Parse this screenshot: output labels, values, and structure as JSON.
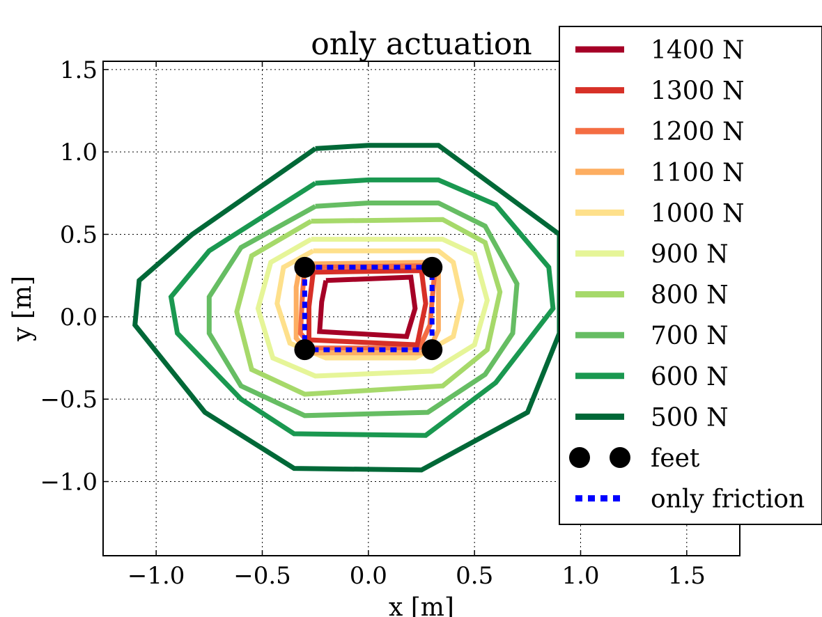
{
  "chart_data": {
    "type": "line",
    "title": "only actuation",
    "xlabel": "x [m]",
    "ylabel": "y [m]",
    "xlim": [
      -1.25,
      1.75
    ],
    "ylim": [
      -1.45,
      1.55
    ],
    "xticks": [
      -1.0,
      -0.5,
      0.0,
      0.5,
      1.0,
      1.5
    ],
    "yticks": [
      -1.0,
      -0.5,
      0.0,
      0.5,
      1.0,
      1.5
    ],
    "xtick_labels": [
      "−1.0",
      "−0.5",
      "0.0",
      "0.5",
      "1.0",
      "1.5"
    ],
    "ytick_labels": [
      "−1.0",
      "−0.5",
      "0.0",
      "0.5",
      "1.0",
      "1.5"
    ],
    "grid": true,
    "legend_position": "top-right",
    "series": [
      {
        "name": "1400 N",
        "color": "#a50026",
        "x": [
          -0.2,
          0.2,
          0.22,
          0.18,
          -0.23,
          -0.22,
          -0.2
        ],
        "y": [
          0.22,
          0.24,
          0.05,
          -0.12,
          -0.09,
          0.09,
          0.22
        ]
      },
      {
        "name": "1300 N",
        "color": "#d73027",
        "x": [
          -0.26,
          0.25,
          0.27,
          0.23,
          -0.28,
          -0.28,
          -0.26
        ],
        "y": [
          0.27,
          0.28,
          0.08,
          -0.17,
          -0.14,
          0.06,
          0.27
        ]
      },
      {
        "name": "1200 N",
        "color": "#f46d43",
        "x": [
          -0.3,
          0.28,
          0.31,
          0.29,
          0.24,
          -0.26,
          -0.32,
          -0.31,
          -0.3
        ],
        "y": [
          0.3,
          0.31,
          0.24,
          -0.05,
          -0.19,
          -0.19,
          -0.1,
          0.15,
          0.3
        ]
      },
      {
        "name": "1100 N",
        "color": "#fdae61",
        "x": [
          -0.32,
          0.3,
          0.33,
          0.33,
          0.28,
          -0.28,
          -0.34,
          -0.34,
          -0.32
        ],
        "y": [
          0.32,
          0.33,
          0.27,
          -0.08,
          -0.22,
          -0.22,
          -0.13,
          0.18,
          0.32
        ]
      },
      {
        "name": "1000 N",
        "color": "#fee08b",
        "x": [
          -0.26,
          0.33,
          0.4,
          0.44,
          0.4,
          0.22,
          -0.2,
          -0.37,
          -0.43,
          -0.4,
          -0.26
        ],
        "y": [
          0.4,
          0.4,
          0.33,
          0.1,
          -0.12,
          -0.25,
          -0.25,
          -0.16,
          0.08,
          0.3,
          0.4
        ]
      },
      {
        "name": "900 N",
        "color": "#e6f598",
        "x": [
          -0.27,
          0.35,
          0.5,
          0.56,
          0.5,
          0.3,
          -0.25,
          -0.45,
          -0.52,
          -0.46,
          -0.27
        ],
        "y": [
          0.47,
          0.47,
          0.38,
          0.1,
          -0.17,
          -0.33,
          -0.36,
          -0.25,
          0.05,
          0.33,
          0.47
        ]
      },
      {
        "name": "800 N",
        "color": "#a6d96a",
        "x": [
          -0.27,
          0.35,
          0.55,
          0.62,
          0.56,
          0.35,
          -0.3,
          -0.55,
          -0.62,
          -0.55,
          -0.27
        ],
        "y": [
          0.58,
          0.59,
          0.45,
          0.15,
          -0.2,
          -0.42,
          -0.47,
          -0.32,
          0.03,
          0.37,
          0.58
        ]
      },
      {
        "name": "700 N",
        "color": "#66bd63",
        "x": [
          -0.25,
          0.0,
          0.33,
          0.55,
          0.7,
          0.68,
          0.55,
          0.28,
          -0.3,
          -0.6,
          -0.75,
          -0.75,
          -0.6,
          -0.25
        ],
        "y": [
          0.67,
          0.69,
          0.69,
          0.55,
          0.2,
          -0.1,
          -0.35,
          -0.58,
          -0.6,
          -0.42,
          -0.1,
          0.12,
          0.42,
          0.67
        ]
      },
      {
        "name": "600 N",
        "color": "#1a9850",
        "x": [
          -0.25,
          0.0,
          0.33,
          0.6,
          0.85,
          0.87,
          0.6,
          0.27,
          -0.35,
          -0.6,
          -0.9,
          -0.93,
          -0.75,
          -0.25
        ],
        "y": [
          0.81,
          0.83,
          0.83,
          0.68,
          0.3,
          0.05,
          -0.4,
          -0.72,
          -0.71,
          -0.5,
          -0.1,
          0.12,
          0.4,
          0.81
        ]
      },
      {
        "name": "500 N",
        "color": "#006837",
        "x": [
          -0.25,
          0.0,
          0.33,
          0.9,
          0.9,
          0.75,
          0.25,
          -0.35,
          -0.77,
          -1.1,
          -1.08,
          -0.83,
          -0.25
        ],
        "y": [
          1.02,
          1.04,
          1.04,
          0.5,
          -0.1,
          -0.58,
          -0.93,
          -0.92,
          -0.58,
          -0.05,
          0.22,
          0.5,
          1.02
        ]
      }
    ],
    "feet": {
      "name": "feet",
      "color": "#000000",
      "x": [
        -0.3,
        0.3,
        -0.3,
        0.3
      ],
      "y": [
        0.3,
        0.3,
        -0.2,
        -0.2
      ]
    },
    "friction": {
      "name": "only friction",
      "color": "#0000ff",
      "x": [
        -0.3,
        0.3,
        0.3,
        -0.3,
        -0.3
      ],
      "y": [
        0.3,
        0.3,
        -0.2,
        -0.2,
        0.3
      ]
    }
  }
}
